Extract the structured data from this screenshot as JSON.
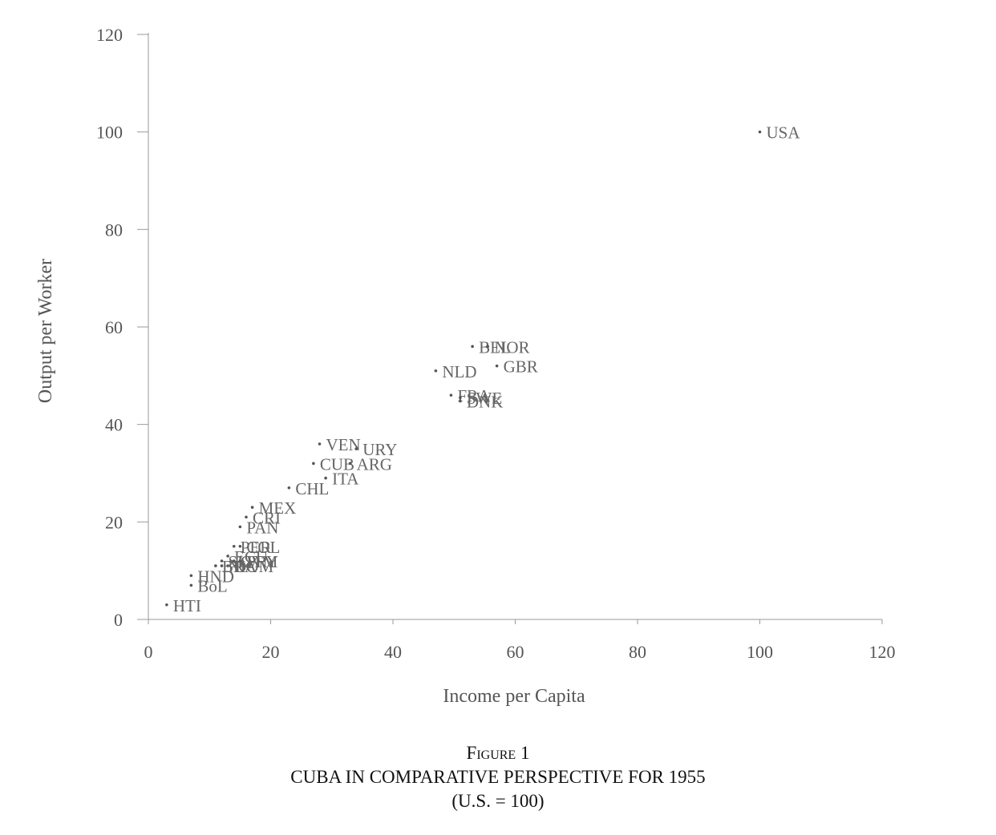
{
  "figure": {
    "label": "Figure 1",
    "title": "CUBA IN COMPARATIVE PERSPECTIVE FOR 1955",
    "note": "(U.S. = 100)"
  },
  "chart_data": {
    "type": "scatter",
    "xlabel": "Income per Capita",
    "ylabel": "Output per Worker",
    "xlim": [
      0,
      120
    ],
    "ylim": [
      0,
      120
    ],
    "x_ticks": [
      "0",
      "20",
      "40",
      "60",
      "80",
      "100",
      "120"
    ],
    "y_ticks": [
      "0",
      "20",
      "40",
      "60",
      "80",
      "100",
      "120"
    ],
    "grid": false,
    "legend": "none",
    "marker_color": "#555555",
    "label_color": "#666666",
    "points": [
      {
        "label": "USA",
        "x": 100,
        "y": 100
      },
      {
        "label": "BEL",
        "x": 53,
        "y": 56
      },
      {
        "label": "NOR",
        "x": 55.5,
        "y": 56
      },
      {
        "label": "GBR",
        "x": 57,
        "y": 52
      },
      {
        "label": "NLD",
        "x": 47,
        "y": 51
      },
      {
        "label": "FRA",
        "x": 49.5,
        "y": 46
      },
      {
        "label": "SWE",
        "x": 51,
        "y": 45.5
      },
      {
        "label": "DNK",
        "x": 51,
        "y": 44.8
      },
      {
        "label": "VEN",
        "x": 28,
        "y": 36
      },
      {
        "label": "URY",
        "x": 34,
        "y": 35
      },
      {
        "label": "CUB",
        "x": 27,
        "y": 32
      },
      {
        "label": "ARG",
        "x": 33,
        "y": 32
      },
      {
        "label": "ITA",
        "x": 29,
        "y": 29
      },
      {
        "label": "CHL",
        "x": 23,
        "y": 27
      },
      {
        "label": "MEX",
        "x": 17,
        "y": 23
      },
      {
        "label": "CRI",
        "x": 16,
        "y": 21
      },
      {
        "label": "PAN",
        "x": 15,
        "y": 19
      },
      {
        "label": "COL",
        "x": 15,
        "y": 15
      },
      {
        "label": "PER",
        "x": 14,
        "y": 15
      },
      {
        "label": "ECU",
        "x": 13,
        "y": 13
      },
      {
        "label": "SLV",
        "x": 12,
        "y": 12
      },
      {
        "label": "GTM",
        "x": 14,
        "y": 12
      },
      {
        "label": "DOM",
        "x": 13,
        "y": 11
      },
      {
        "label": "NIC",
        "x": 12,
        "y": 11
      },
      {
        "label": "PRY",
        "x": 15,
        "y": 12
      },
      {
        "label": "BRA",
        "x": 11,
        "y": 11
      },
      {
        "label": "HND",
        "x": 7,
        "y": 9
      },
      {
        "label": "BOL",
        "x": 7,
        "y": 7
      },
      {
        "label": "HTI",
        "x": 3,
        "y": 3
      }
    ],
    "points_display": {
      "USA": "USA",
      "BEL": "BEL",
      "NOR": "NOR",
      "GBR": "GBR",
      "NLD": "NLD",
      "FRA": "FRA",
      "SWE": "SWE",
      "DNK": "DNK",
      "VEN": "VEN",
      "URY": "URY",
      "CUB": "CUB",
      "ARG": "ARG",
      "ITA": "ITA",
      "CHL": "CHL",
      "MEX": "MEX",
      "CRI": "CRI",
      "PAN": "PAN",
      "COL": "COL",
      "PER": "PER",
      "ECU": "ECU",
      "SLV": "SLV",
      "GTM": "GTM",
      "DOM": "DOM",
      "NIC": "NIC",
      "PRY": "PRY",
      "BRA": "BRA",
      "HND": "HND",
      "BOL": "BoL",
      "HTI": "HTI"
    }
  }
}
